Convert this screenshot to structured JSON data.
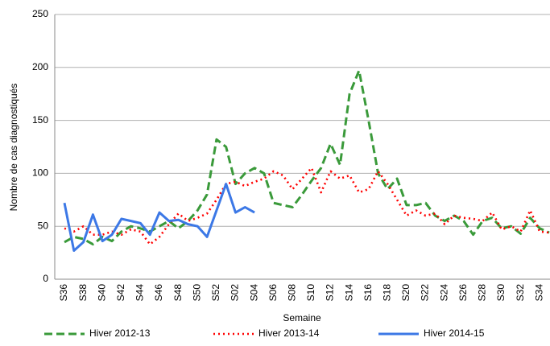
{
  "chart_data": {
    "type": "line",
    "ylabel": "Nombre de cas diagnostiqués",
    "xlabel": "Semaine",
    "categories": [
      "S36",
      null,
      "S38",
      null,
      "S40",
      null,
      "S42",
      null,
      "S44",
      null,
      "S46",
      null,
      "S48",
      null,
      "S50",
      null,
      "S52",
      null,
      "S02",
      null,
      "S04",
      null,
      "S06",
      null,
      "S08",
      null,
      "S10",
      null,
      "S12",
      null,
      "S14",
      null,
      "S16",
      null,
      "S18",
      null,
      "S20",
      null,
      "S22",
      null,
      "S24",
      null,
      "S26",
      null,
      "S28",
      null,
      "S30",
      null,
      "S32",
      null,
      "S34",
      null
    ],
    "series": [
      {
        "name": "Hiver 2012-13",
        "color": "#3a9a3a",
        "dash": "dashed",
        "values": [
          35,
          40,
          38,
          33,
          40,
          36,
          45,
          50,
          48,
          45,
          50,
          55,
          48,
          55,
          65,
          80,
          132,
          125,
          90,
          100,
          105,
          100,
          72,
          70,
          68,
          80,
          93,
          105,
          128,
          108,
          175,
          197,
          150,
          100,
          85,
          95,
          70,
          70,
          72,
          60,
          55,
          60,
          55,
          42,
          55,
          58,
          48,
          50,
          43,
          58,
          48,
          44
        ]
      },
      {
        "name": "Hiver 2013-14",
        "color": "#ff0000",
        "dash": "dotted",
        "values": [
          48,
          45,
          50,
          42,
          42,
          45,
          42,
          47,
          45,
          33,
          40,
          52,
          62,
          55,
          58,
          62,
          75,
          90,
          92,
          88,
          92,
          95,
          102,
          98,
          85,
          95,
          105,
          82,
          102,
          95,
          98,
          82,
          85,
          102,
          90,
          75,
          60,
          65,
          60,
          62,
          52,
          60,
          58,
          57,
          55,
          63,
          47,
          50,
          45,
          65,
          45,
          44
        ]
      },
      {
        "name": "Hiver 2014-15",
        "color": "#3c78e6",
        "dash": "solid",
        "values": [
          72,
          27,
          35,
          61,
          36,
          42,
          57,
          55,
          53,
          42,
          63,
          55,
          56,
          52,
          50,
          40,
          65,
          90,
          63,
          68,
          63,
          null,
          null,
          null,
          null,
          null,
          null,
          null,
          null,
          null,
          null,
          null,
          null,
          null,
          null,
          null,
          null,
          null,
          null,
          null,
          null,
          null,
          null,
          null,
          null,
          null,
          null,
          null,
          null,
          null,
          null,
          null
        ]
      }
    ],
    "ylim": [
      0,
      250
    ],
    "yticks": [
      0,
      50,
      100,
      150,
      200,
      250
    ],
    "grid": true,
    "legend": "bottom"
  }
}
